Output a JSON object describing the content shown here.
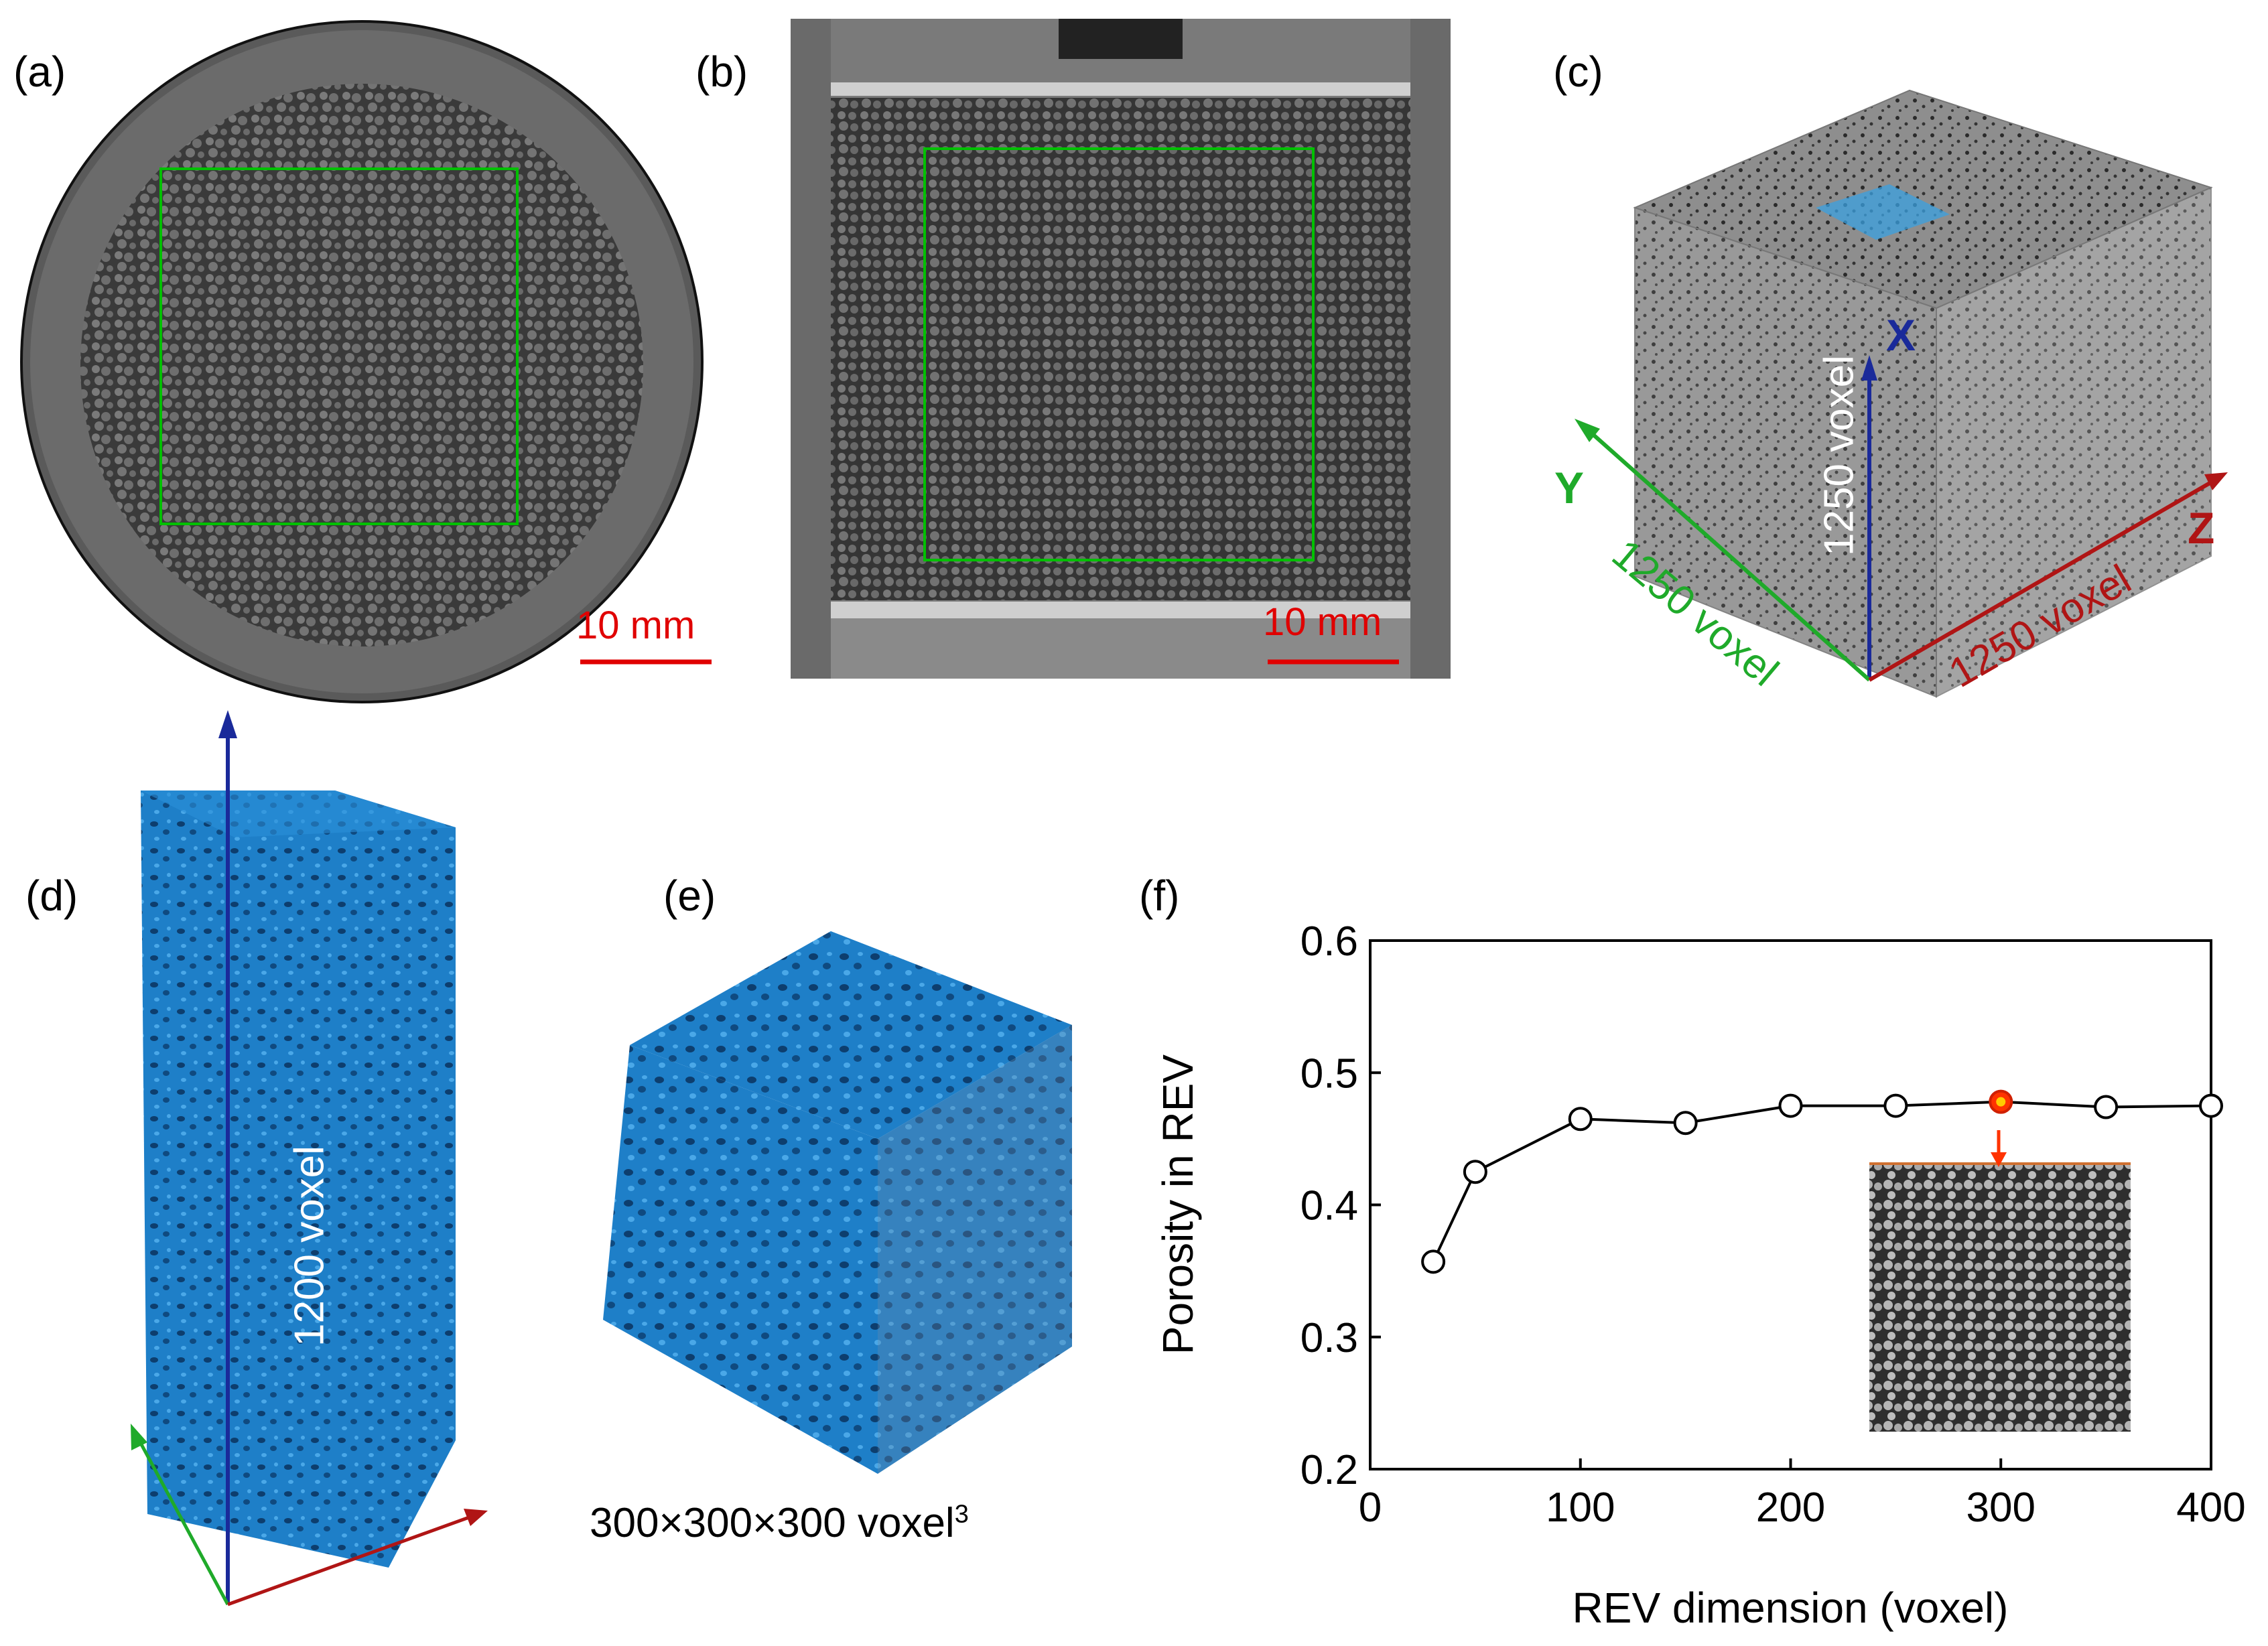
{
  "panels": {
    "a": {
      "label": "(a)",
      "scale_bar": "10 mm"
    },
    "b": {
      "label": "(b)",
      "scale_bar": "10 mm"
    },
    "c": {
      "label": "(c)",
      "axis_x": "X",
      "axis_y": "Y",
      "axis_z": "Z",
      "dim_x": "1250 voxel",
      "dim_y": "1250 voxel",
      "dim_z": "1250 voxel"
    },
    "d": {
      "label": "(d)",
      "dim": "1200 voxel"
    },
    "e": {
      "label": "(e)",
      "caption": "300×300×300 voxel",
      "caption_sup": "3"
    },
    "f": {
      "label": "(f)"
    }
  },
  "colors": {
    "scale_bar": "#e00000",
    "roi_box": "#00c000",
    "axis_x": "#1a2a9a",
    "axis_y": "#1faa2a",
    "axis_z": "#b01515",
    "pore_blue": "#1e7fc8",
    "highlight": "#ff3300"
  },
  "chart_data": {
    "type": "scatter",
    "xlabel": "REV dimension (voxel)",
    "ylabel": "Porosity in REV",
    "xlim": [
      0,
      400
    ],
    "ylim": [
      0.2,
      0.6
    ],
    "xticks": [
      "0",
      "100",
      "200",
      "300",
      "400"
    ],
    "yticks": [
      "0.2",
      "0.3",
      "0.4",
      "0.5",
      "0.6"
    ],
    "x": [
      30,
      50,
      100,
      150,
      200,
      250,
      300,
      350,
      400
    ],
    "y": [
      0.357,
      0.425,
      0.465,
      0.462,
      0.475,
      0.475,
      0.478,
      0.474,
      0.475
    ],
    "highlight_x": 300,
    "grid": false,
    "legend": "none"
  }
}
